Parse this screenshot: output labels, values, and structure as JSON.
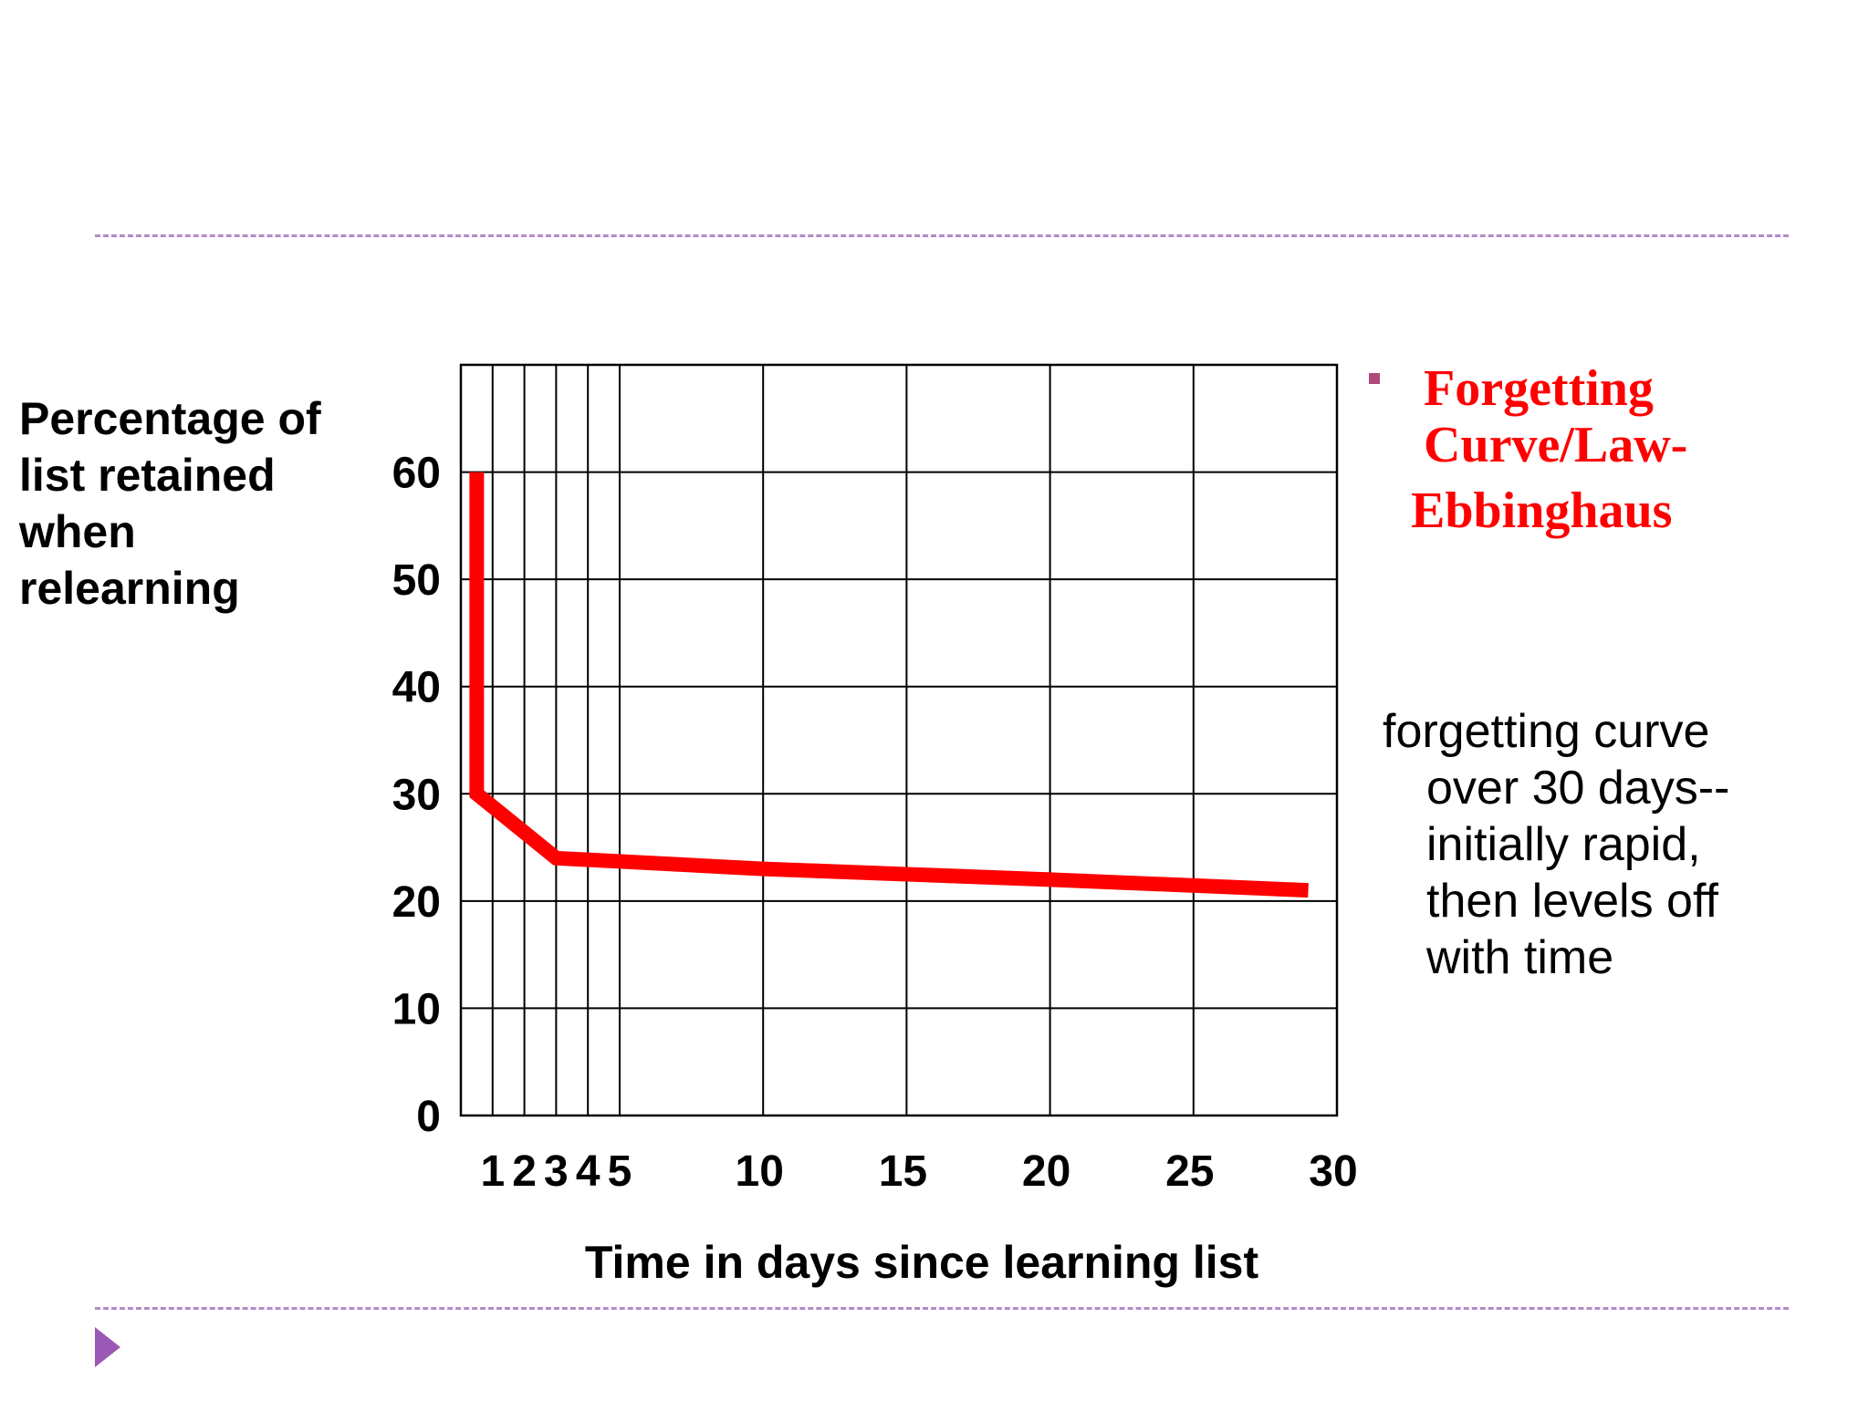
{
  "chart_data": {
    "type": "line",
    "title": "",
    "xlabel": "Time in days since learning list",
    "ylabel": "Percentage of list retained when relearning",
    "xlim": [
      0,
      30
    ],
    "ylim": [
      0,
      70
    ],
    "x_ticks": [
      1,
      2,
      3,
      4,
      5,
      10,
      15,
      20,
      25,
      30
    ],
    "y_ticks": [
      0,
      10,
      20,
      30,
      40,
      50,
      60
    ],
    "grid": true,
    "series": [
      {
        "x": [
          0.5,
          0.5,
          3,
          10,
          20,
          29
        ],
        "y": [
          60,
          30,
          24,
          23,
          22,
          21
        ],
        "color": "#ff0000"
      }
    ]
  },
  "heading": {
    "line1": "Forgetting",
    "line2": "Curve/Law-",
    "line3": "Ebbinghaus"
  },
  "description": {
    "line1": "forgetting curve",
    "line2": "over 30 days--",
    "line3": "initially rapid,",
    "line4": "then levels off",
    "line5": "with time"
  },
  "y_title_lines": [
    "Percentage of",
    "list retained",
    "when",
    "relearning"
  ],
  "colors": {
    "line": "#ff0000",
    "divider": "#b48ac6",
    "nav": "#9b59b6",
    "bullet": "#b04a7a"
  }
}
